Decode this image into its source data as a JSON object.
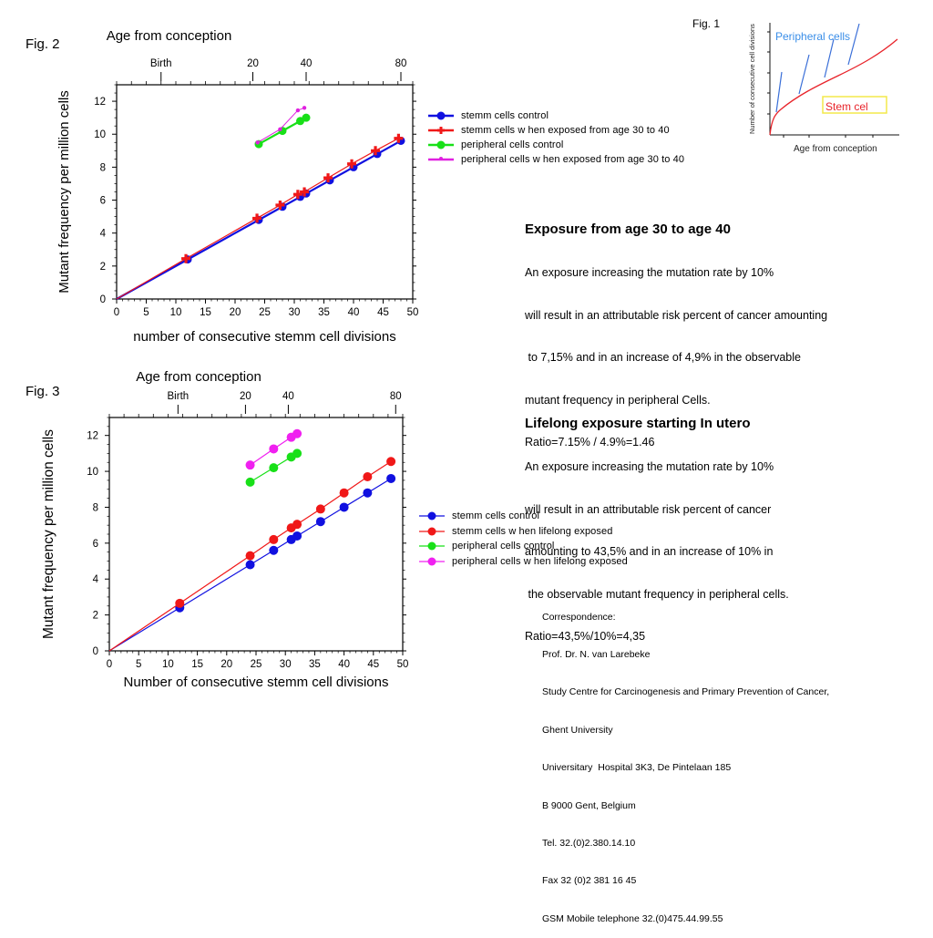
{
  "fig1": {
    "label": "Fig. 1",
    "ylabel": "Number of consecutive cell divisions",
    "xlabel": "Age from conception",
    "peripheral_label": "Peripheral cells",
    "stem_label": "Stem cel",
    "colors": {
      "stem": "#e8232a",
      "peripheral": "#3a6fd8",
      "box": "#f3e84a"
    }
  },
  "fig2": {
    "label": "Fig. 2",
    "text": {
      "heading": "Exposure from age 30 to age 40",
      "lines": [
        "An exposure increasing the mutation rate by 10%",
        "will result in an attributable risk percent of cancer amounting",
        " to 7,15% and in an increase of 4,9% in the observable",
        "mutant frequency in peripheral Cells.",
        "Ratio=7.15% / 4.9%=1.46"
      ]
    }
  },
  "fig3": {
    "label": "Fig. 3",
    "text": {
      "heading": "Lifelong exposure starting In utero",
      "lines": [
        "An exposure increasing the mutation rate by 10%",
        "will result in an attributable risk percent of cancer",
        "amounting to 43,5% and in an increase of 10% in",
        " the observable mutant frequency in peripheral cells.",
        "Ratio=43,5%/10%=4,35"
      ]
    }
  },
  "correspondence": {
    "lines": [
      "Correspondence:",
      "Prof. Dr. N. van Larebeke",
      "Study Centre for Carcinogenesis and Primary Prevention of Cancer,",
      "Ghent University",
      "Universitary  Hospital 3K3, De Pintelaan 185",
      "B 9000 Gent, Belgium",
      "Tel. 32.(0)2.380.14.10",
      "Fax 32 (0)2 381 16 45",
      "GSM Mobile telephone 32.(0)475.44.99.55"
    ]
  },
  "chart_data": [
    {
      "id": "fig2",
      "type": "line",
      "title": "Age from conception",
      "xlabel": "number of consecutive stemm cell divisions",
      "ylabel": "Mutant frequency per million cells",
      "xlim": [
        0,
        50
      ],
      "ylim": [
        0,
        13
      ],
      "xticks": [
        "0",
        "5",
        "10",
        "15",
        "20",
        "25",
        "30",
        "35",
        "40",
        "45",
        "50"
      ],
      "yticks": [
        "0",
        "2",
        "4",
        "6",
        "8",
        "10",
        "12"
      ],
      "top_axis": {
        "title": "Age from conception",
        "ticks": [
          {
            "label": "Birth",
            "x": 7.5
          },
          {
            "label": "20",
            "x": 23
          },
          {
            "label": "40",
            "x": 32
          },
          {
            "label": "80",
            "x": 48
          }
        ]
      },
      "legend_position": "right",
      "series": [
        {
          "name": " stemm cells control",
          "color": "#1010e0",
          "marker": "circle",
          "points": [
            [
              0,
              0
            ],
            [
              12,
              2.4
            ],
            [
              24,
              4.8
            ],
            [
              28,
              5.6
            ],
            [
              31,
              6.2
            ],
            [
              32,
              6.4
            ],
            [
              36,
              7.2
            ],
            [
              40,
              8.0
            ],
            [
              44,
              8.8
            ],
            [
              48,
              9.6
            ]
          ]
        },
        {
          "name": "stemm cells w hen exposed from age 30 to 40",
          "color": "#f01818",
          "marker": "plus",
          "points": [
            [
              0,
              0
            ],
            [
              11.7,
              2.45
            ],
            [
              23.7,
              4.9
            ],
            [
              27.6,
              5.7
            ],
            [
              30.6,
              6.35
            ],
            [
              31.7,
              6.5
            ],
            [
              35.7,
              7.35
            ],
            [
              39.7,
              8.2
            ],
            [
              43.7,
              9.0
            ],
            [
              47.6,
              9.75
            ]
          ]
        },
        {
          "name": "peripheral cells control",
          "color": "#18e018",
          "marker": "circle",
          "points": [
            [
              24,
              9.4
            ],
            [
              28,
              10.2
            ],
            [
              31,
              10.8
            ],
            [
              32,
              11.0
            ]
          ]
        },
        {
          "name": "peripheral cells w hen exposed from age 30 to 40",
          "color": "#e020e0",
          "marker": "small",
          "points": [
            [
              23.8,
              9.5
            ],
            [
              27.6,
              10.3
            ],
            [
              30.6,
              11.45
            ],
            [
              31.7,
              11.6
            ]
          ]
        }
      ]
    },
    {
      "id": "fig3",
      "type": "line",
      "title": "Age from conception",
      "xlabel": "Number of consecutive stemm cell divisions",
      "ylabel": "Mutant frequency per million cells",
      "xlim": [
        0,
        50
      ],
      "ylim": [
        0,
        13
      ],
      "xticks": [
        "0",
        "5",
        "10",
        "15",
        "20",
        "25",
        "30",
        "35",
        "40",
        "45",
        "50"
      ],
      "yticks": [
        "0",
        "2",
        "4",
        "6",
        "8",
        "10",
        "12"
      ],
      "top_axis": {
        "title": "Age from conception",
        "ticks": [
          {
            "label": "Birth",
            "x": 11.7
          },
          {
            "label": "20",
            "x": 23.2
          },
          {
            "label": "40",
            "x": 30.5
          },
          {
            "label": "80",
            "x": 48.8
          }
        ]
      },
      "legend_position": "right",
      "series": [
        {
          "name": "stemm cells control",
          "color": "#1010e0",
          "marker": "circle",
          "points": [
            [
              0,
              0
            ],
            [
              12,
              2.4
            ],
            [
              24,
              4.8
            ],
            [
              28,
              5.6
            ],
            [
              31,
              6.2
            ],
            [
              32,
              6.4
            ],
            [
              36,
              7.2
            ],
            [
              40,
              8.0
            ],
            [
              44,
              8.8
            ],
            [
              48,
              9.6
            ]
          ]
        },
        {
          "name": "stemm cells w hen lifelong exposed",
          "color": "#f01818",
          "marker": "circle",
          "points": [
            [
              0,
              0
            ],
            [
              12,
              2.65
            ],
            [
              24,
              5.3
            ],
            [
              28,
              6.2
            ],
            [
              31,
              6.85
            ],
            [
              32,
              7.05
            ],
            [
              36,
              7.9
            ],
            [
              40,
              8.8
            ],
            [
              44,
              9.7
            ],
            [
              48,
              10.55
            ]
          ]
        },
        {
          "name": "peripheral cells control",
          "color": "#18e018",
          "marker": "circle",
          "points": [
            [
              24,
              9.4
            ],
            [
              28,
              10.2
            ],
            [
              31,
              10.8
            ],
            [
              32,
              11.0
            ]
          ]
        },
        {
          "name": "peripheral cells w hen lifelong exposed",
          "color": "#f020f0",
          "marker": "circle",
          "points": [
            [
              24,
              10.35
            ],
            [
              28,
              11.25
            ],
            [
              31,
              11.9
            ],
            [
              32,
              12.1
            ]
          ]
        }
      ]
    }
  ]
}
